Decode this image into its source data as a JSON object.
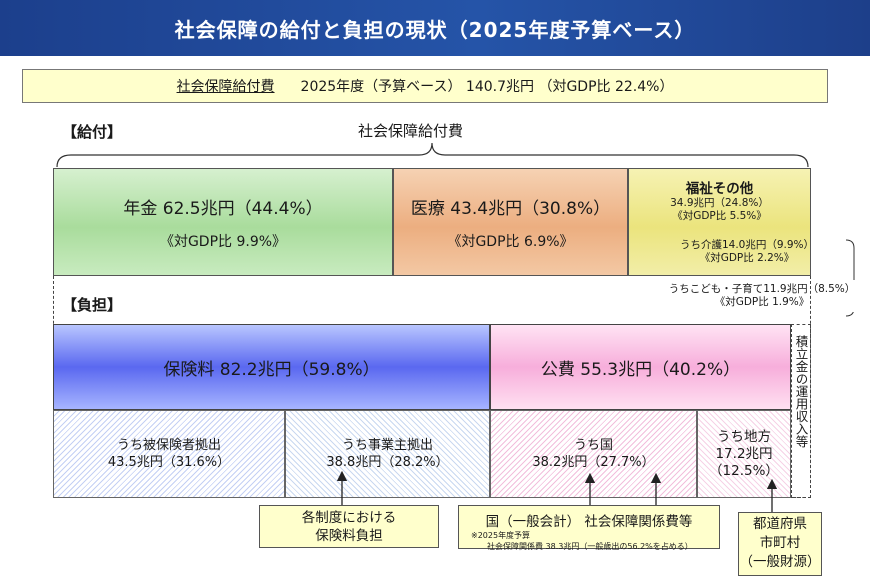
{
  "title": "社会保障の給付と負担の現状（2025年度予算ベース）",
  "summary": {
    "label": "社会保障給付費",
    "text": "2025年度（予算ベース） 140.7兆円 （対GDP比 22.4%）"
  },
  "benefits": {
    "section_label": "【給付】",
    "brace_label": "社会保障給付費",
    "pension": {
      "line1": "年金 62.5兆円（44.4%）",
      "line2": "《対GDP比 9.9%》",
      "share_pct": 44.4
    },
    "medical": {
      "line1": "医療 43.4兆円（30.8%）",
      "line2": "《対GDP比 6.9%》",
      "share_pct": 30.8
    },
    "welfare": {
      "title": "福祉その他",
      "line1": "34.9兆円（24.8%）",
      "line2": "《対GDP比 5.5%》",
      "care_line1": "うち介護14.0兆円（9.9%）",
      "care_line2": "《対GDP比 2.2%》",
      "child_line1": "うちこども・子育て11.9兆円（8.5%）",
      "child_line2": "《対GDP比 1.9%》",
      "share_pct": 24.8
    }
  },
  "burden": {
    "section_label": "【負担】",
    "insurance": {
      "label": "保険料 82.2兆円（59.8%）",
      "share_pct": 59.8
    },
    "public": {
      "label": "公費 55.3兆円（40.2%）",
      "share_pct": 40.2
    },
    "reserve_label": "積立金の運用収入等",
    "insured": {
      "line1": "うち被保険者拠出",
      "line2": "43.5兆円（31.6%）"
    },
    "employer": {
      "line1": "うち事業主拠出",
      "line2": "38.8兆円（28.2%）"
    },
    "national": {
      "line1": "うち国",
      "line2": "38.2兆円（27.7%）"
    },
    "local": {
      "line1": "うち地方",
      "line2": "17.2兆円",
      "line3": "（12.5%）"
    }
  },
  "notes": {
    "premium_line1": "各制度における",
    "premium_line2": "保険料負担",
    "gov_line1": "国（一般会計） 社会保障関係費等",
    "gov_line2": "※2025年度予算",
    "gov_line3": "社会保障関係費 38.3兆円（一般歳出の56.2%を占める）",
    "local_line1": "都道府県",
    "local_line2": "市町村",
    "local_line3": "（一般財源）"
  }
}
